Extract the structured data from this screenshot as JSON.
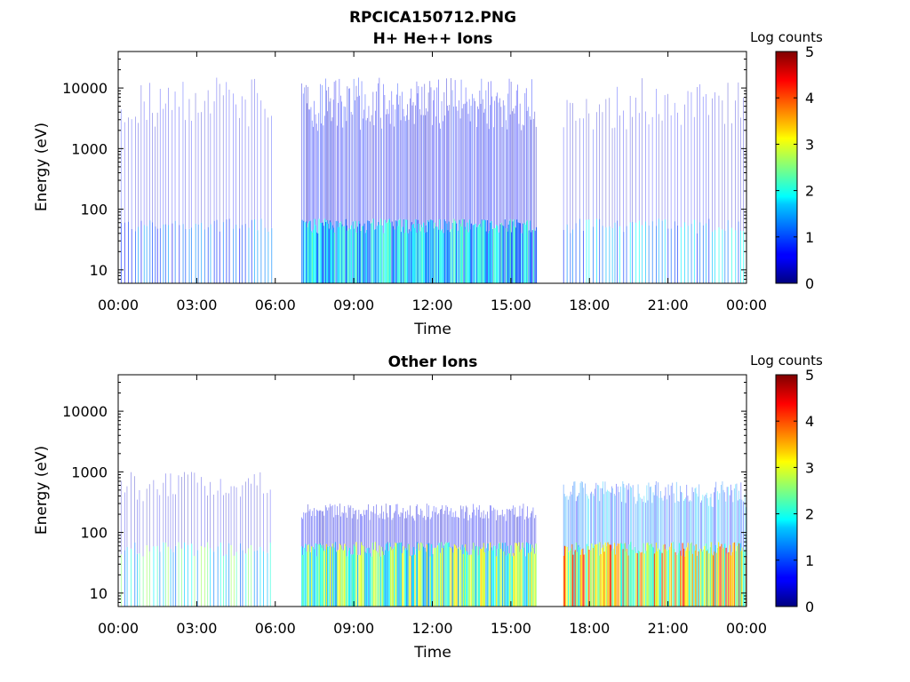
{
  "figure_title": "RPCICA150712.PNG",
  "chart_data": [
    {
      "type": "heatmap",
      "title": "H+ He++ Ions",
      "xlabel": "Time",
      "ylabel": "Energy (eV)",
      "xticks": [
        "00:00",
        "03:00",
        "06:00",
        "09:00",
        "12:00",
        "15:00",
        "18:00",
        "21:00",
        "00:00"
      ],
      "xlim_hours": [
        0,
        24
      ],
      "yscale": "log",
      "ylim": [
        6,
        40000
      ],
      "yticks": [
        10,
        100,
        1000,
        10000
      ],
      "ytick_labels": [
        "10",
        "100",
        "1000",
        "10000"
      ],
      "colorbar": {
        "label": "Log counts",
        "range": [
          0,
          5
        ],
        "ticks": [
          "0",
          "1",
          "2",
          "3",
          "4",
          "5"
        ],
        "colormap": "jet"
      },
      "data_gaps_hours": [
        [
          5.9,
          7.0
        ],
        [
          15.95,
          17.0
        ]
      ],
      "segments": [
        {
          "start": 0.1,
          "end": 5.9,
          "pattern": "sparse",
          "max_energy_ev": 15000,
          "low_band_log_counts": 1.0,
          "high_band_log_counts": 0.5
        },
        {
          "start": 7.0,
          "end": 15.95,
          "pattern": "dense",
          "max_energy_ev": 15000,
          "low_band_log_counts": 1.6,
          "high_band_log_counts": 0.6
        },
        {
          "start": 17.0,
          "end": 24.0,
          "pattern": "sparse",
          "max_energy_ev": 15000,
          "low_band_log_counts": 1.4,
          "high_band_log_counts": 0.5
        }
      ]
    },
    {
      "type": "heatmap",
      "title": "Other Ions",
      "xlabel": "Time",
      "ylabel": "Energy (eV)",
      "xticks": [
        "00:00",
        "03:00",
        "06:00",
        "09:00",
        "12:00",
        "15:00",
        "18:00",
        "21:00",
        "00:00"
      ],
      "xlim_hours": [
        0,
        24
      ],
      "yscale": "log",
      "ylim": [
        6,
        40000
      ],
      "yticks": [
        10,
        100,
        1000,
        10000
      ],
      "ytick_labels": [
        "10",
        "100",
        "1000",
        "10000"
      ],
      "colorbar": {
        "label": "Log counts",
        "range": [
          0,
          5
        ],
        "ticks": [
          "0",
          "1",
          "2",
          "3",
          "4",
          "5"
        ],
        "colormap": "jet"
      },
      "data_gaps_hours": [
        [
          5.9,
          7.0
        ],
        [
          15.95,
          17.0
        ]
      ],
      "segments": [
        {
          "start": 0.1,
          "end": 5.9,
          "pattern": "sparse",
          "max_energy_ev": 1000,
          "low_band_log_counts": 1.9,
          "high_band_log_counts": 0.4
        },
        {
          "start": 7.0,
          "end": 15.95,
          "pattern": "dense",
          "max_energy_ev": 300,
          "low_band_log_counts": 2.3,
          "high_band_log_counts": 0.5
        },
        {
          "start": 17.0,
          "end": 24.0,
          "pattern": "dense",
          "max_energy_ev": 700,
          "low_band_log_counts": 3.0,
          "high_band_log_counts": 1.2
        }
      ]
    }
  ]
}
